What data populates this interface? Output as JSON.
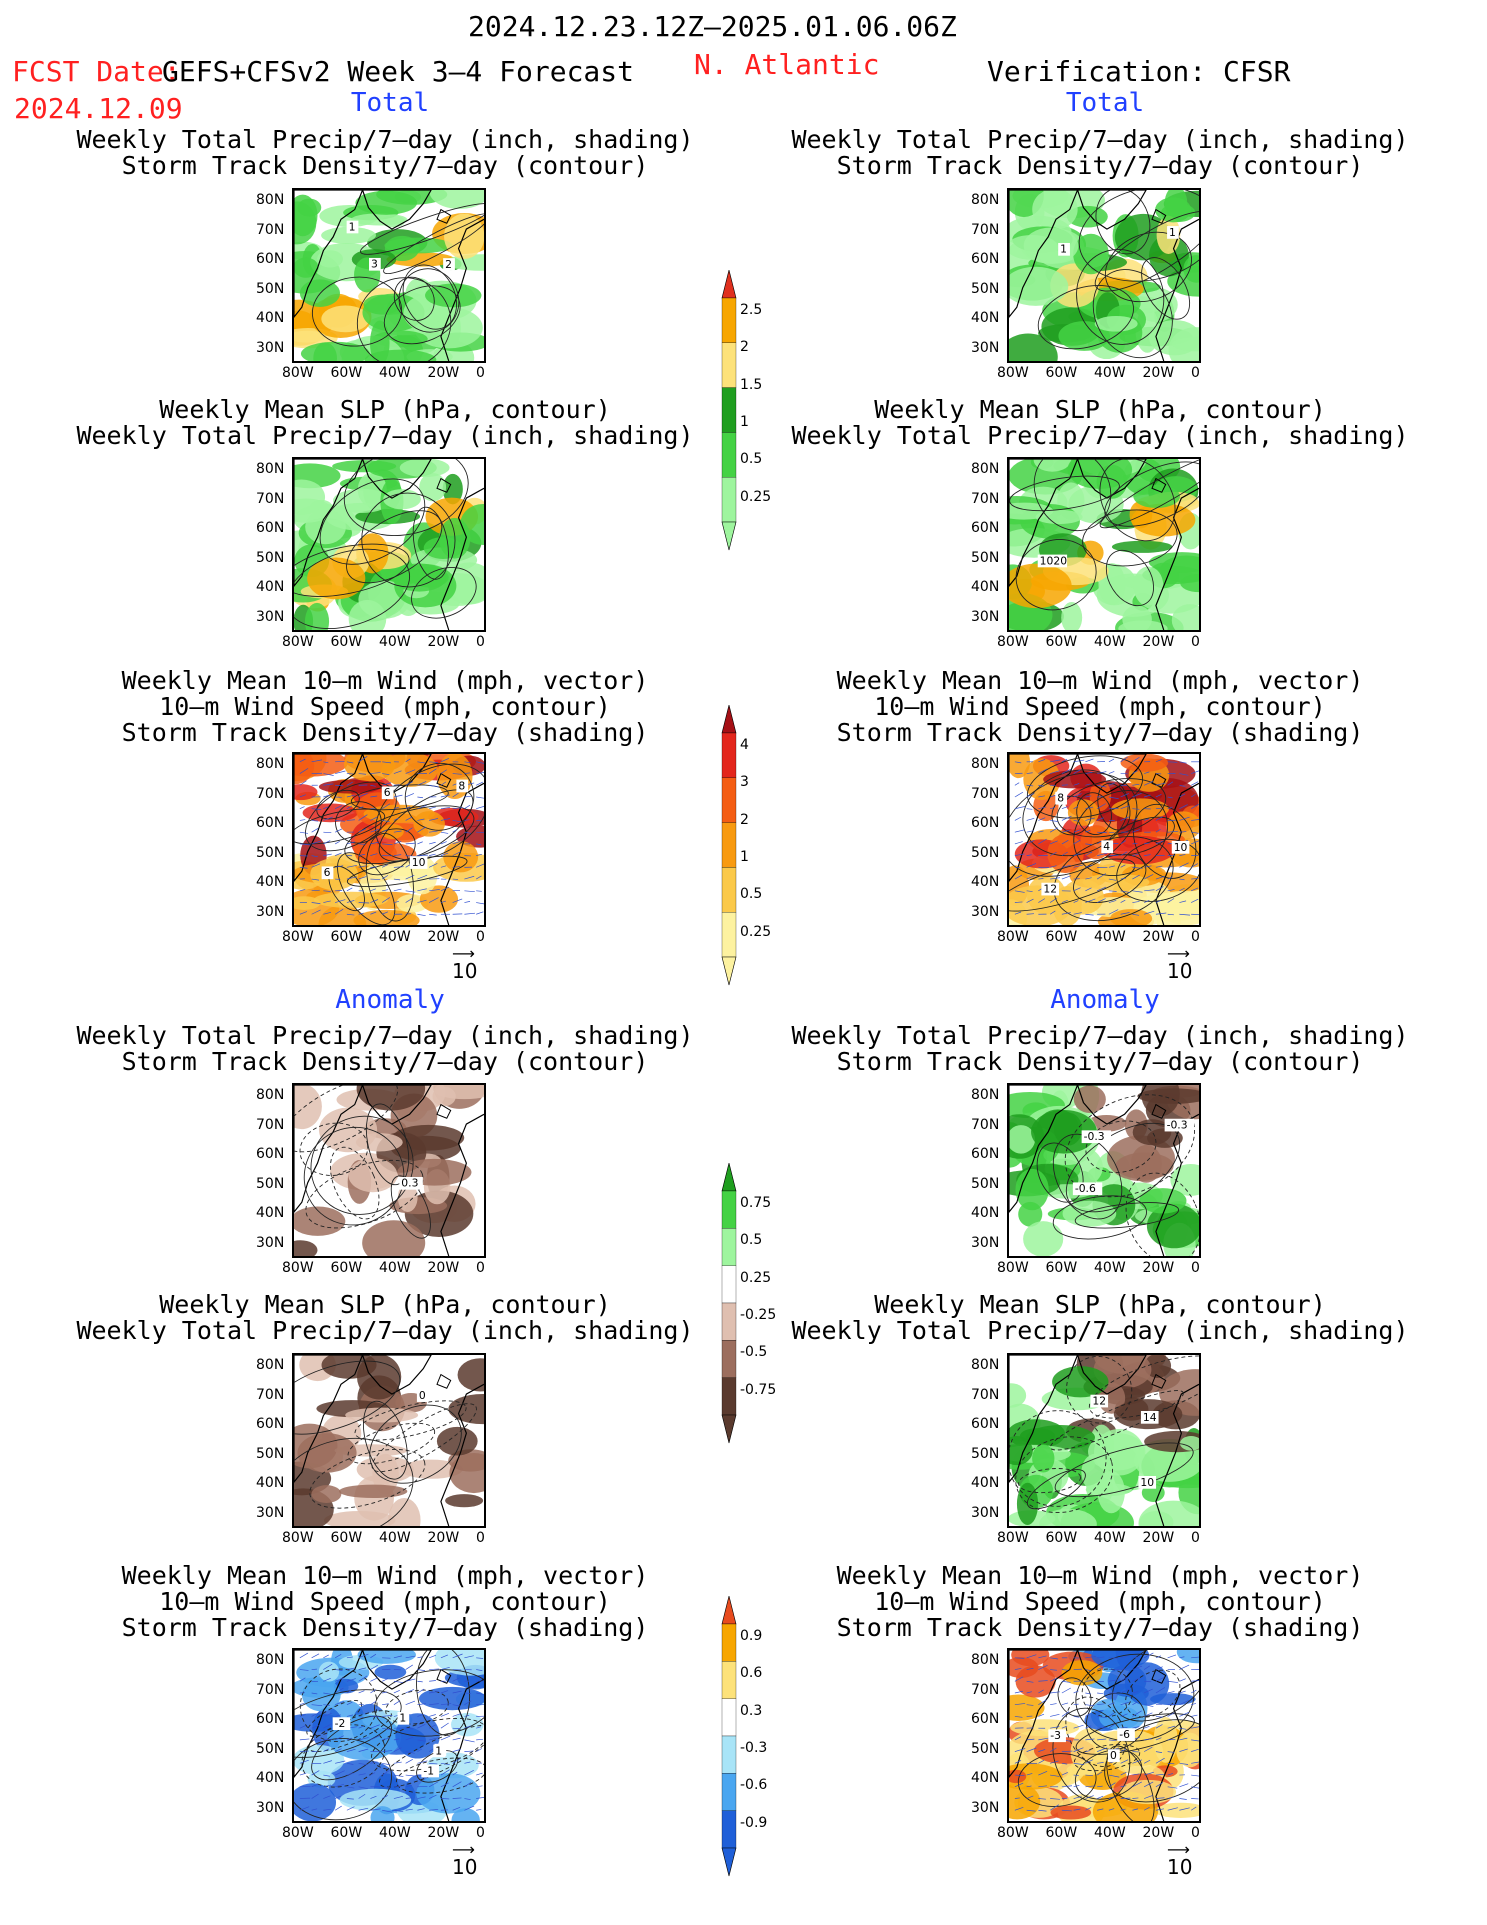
{
  "header": {
    "date_range": "2024.12.23.12Z–2025.01.06.06Z",
    "fcst_label": "FCST Date:",
    "fcst_model": "GEFS+CFSv2 Week 3–4 Forecast",
    "fcst_date": "2024.12.09",
    "region": "N. Atlantic",
    "verification": "Verification: CFSR"
  },
  "sections": {
    "total": "Total",
    "anomaly": "Anomaly"
  },
  "panel_titles": {
    "precip_storm": [
      "Weekly Total Precip/7–day (inch, shading)",
      "Storm Track Density/7–day (contour)"
    ],
    "slp_precip": [
      "Weekly Mean SLP (hPa, contour)",
      "Weekly Total Precip/7–day (inch, shading)"
    ],
    "wind_storm": [
      "Weekly Mean 10–m Wind (mph, vector)",
      "10–m Wind Speed (mph, contour)",
      "Storm Track Density/7–day (shading)"
    ]
  },
  "axes": {
    "lat_labels": [
      "80N",
      "70N",
      "60N",
      "50N",
      "40N",
      "30N"
    ],
    "lon_labels": [
      "80W",
      "60W",
      "40W",
      "20W",
      "0"
    ]
  },
  "vector_key": "10",
  "colorbars": {
    "precip_total": {
      "labels": [
        "2.5",
        "2",
        "1.5",
        "1",
        "0.5",
        "0.25"
      ],
      "colors": [
        "#e0301e",
        "#f7a600",
        "#fde27a",
        "#1f9e1f",
        "#44d244",
        "#9ef59e"
      ]
    },
    "storm_total": {
      "labels": [
        "4",
        "3",
        "2",
        "1",
        "0.5",
        "0.25"
      ],
      "colors": [
        "#a50f15",
        "#e3261c",
        "#f45d13",
        "#f89a10",
        "#fbc94a",
        "#fdf2a0"
      ]
    },
    "precip_anom": {
      "labels": [
        "0.75",
        "0.5",
        "0.25",
        "-0.25",
        "-0.5",
        "-0.75"
      ],
      "colors": [
        "#1f9e1f",
        "#44d244",
        "#9ef59e",
        "#ffffff",
        "#dfbfb0",
        "#9c6e5e",
        "#5a3a2e"
      ]
    },
    "storm_anom": {
      "labels": [
        "0.9",
        "0.6",
        "0.3",
        "-0.3",
        "-0.6",
        "-0.9"
      ],
      "colors": [
        "#e84b1e",
        "#f7a600",
        "#fde27a",
        "#ffffff",
        "#a8e4f7",
        "#4aa6f0",
        "#1f5fd8"
      ]
    }
  },
  "chart_data": [
    {
      "type": "heatmap",
      "panel": "forecast-total-precip-storm",
      "title": "Weekly Total Precip/7–day (inch, shading) Storm Track Density/7–day (contour)",
      "contour_labels": [
        "1",
        "2",
        "3"
      ]
    },
    {
      "type": "heatmap",
      "panel": "forecast-total-slp-precip",
      "title": "Weekly Mean SLP (hPa, contour) Weekly Total Precip/7–day (inch, shading)",
      "contour_labels": []
    },
    {
      "type": "heatmap",
      "panel": "forecast-total-wind-storm",
      "title": "Weekly Mean 10–m Wind (mph, vector) 10–m Wind Speed (mph, contour) Storm Track Density/7–day (shading)",
      "contour_labels": [
        "6",
        "10",
        "6",
        "8"
      ]
    },
    {
      "type": "heatmap",
      "panel": "forecast-anom-precip-storm",
      "title": "Weekly Total Precip/7–day (inch, shading) Storm Track Density/7–day (contour)",
      "contour_labels": [
        "0.3"
      ]
    },
    {
      "type": "heatmap",
      "panel": "forecast-anom-slp-precip",
      "title": "Weekly Mean SLP (hPa, contour) Weekly Total Precip/7–day (inch, shading)",
      "contour_labels": [
        "0"
      ]
    },
    {
      "type": "heatmap",
      "panel": "forecast-anom-wind-storm",
      "title": "Weekly Mean 10–m Wind (mph, vector) 10–m Wind Speed (mph, contour) Storm Track Density/7–day (shading)",
      "contour_labels": [
        "1",
        "1",
        "1",
        "-1",
        "-2"
      ]
    },
    {
      "type": "heatmap",
      "panel": "verif-total-precip-storm",
      "title": "Weekly Total Precip/7–day (inch, shading) Storm Track Density/7–day (contour)",
      "contour_labels": [
        "1",
        "1"
      ]
    },
    {
      "type": "heatmap",
      "panel": "verif-total-slp-precip",
      "title": "Weekly Mean SLP (hPa, contour) Weekly Total Precip/7–day (inch, shading)",
      "contour_labels": [
        "1020"
      ]
    },
    {
      "type": "heatmap",
      "panel": "verif-total-wind-storm",
      "title": "Weekly Mean 10–m Wind (mph, vector) 10–m Wind Speed (mph, contour) Storm Track Density/7–day (shading)",
      "contour_labels": [
        "8",
        "10",
        "12",
        "4"
      ]
    },
    {
      "type": "heatmap",
      "panel": "verif-anom-precip-storm",
      "title": "Weekly Total Precip/7–day (inch, shading) Storm Track Density/7–day (contour)",
      "contour_labels": [
        "-0.6",
        "-0.3",
        "-0.3"
      ]
    },
    {
      "type": "heatmap",
      "panel": "verif-anom-slp-precip",
      "title": "Weekly Mean SLP (hPa, contour) Weekly Total Precip/7–day (inch, shading)",
      "contour_labels": [
        "12",
        "10",
        "14"
      ]
    },
    {
      "type": "heatmap",
      "panel": "verif-anom-wind-storm",
      "title": "Weekly Mean 10–m Wind (mph, vector) 10–m Wind Speed (mph, contour) Storm Track Density/7–day (shading)",
      "contour_labels": [
        "0",
        "-3",
        "-6"
      ]
    }
  ]
}
